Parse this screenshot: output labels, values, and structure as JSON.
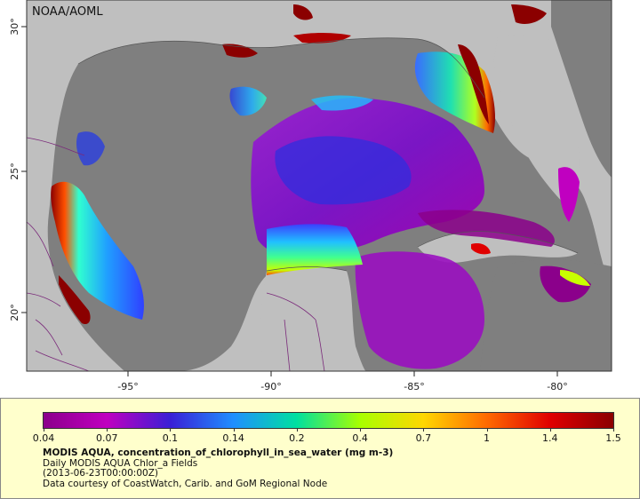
{
  "map": {
    "credit": "NOAA/AOML",
    "longitude_labels": [
      "-95°",
      "-90°",
      "-85°",
      "-80°"
    ],
    "latitude_labels": [
      "30°",
      "25°",
      "20°"
    ],
    "colors": {
      "land": "#bfbfbf",
      "ocean_no_data": "#7f7f7f",
      "borders": "#7a2a7a",
      "coast": "#555555"
    }
  },
  "legend": {
    "colorbar_labels": [
      "0.04",
      "0.07",
      "0.1",
      "0.14",
      "0.2",
      "0.4",
      "0.7",
      "1",
      "1.4",
      "1.5"
    ],
    "colorbar_colors": [
      "#8b008b",
      "#c000c0",
      "#3a1fd6",
      "#1f8fff",
      "#00e0a0",
      "#a8ff00",
      "#ffd700",
      "#ff6a00",
      "#e00000",
      "#8b0000"
    ],
    "title": "MODIS AQUA, concentration_of_chlorophyll_in_sea_water (mg m-3)",
    "subtitle": "Daily MODIS AQUA Chlor_a Fields",
    "date": "(2013-06-23T00:00:00Z)",
    "courtesy": "Data courtesy of CoastWatch, Carib. and GoM Regional Node"
  }
}
